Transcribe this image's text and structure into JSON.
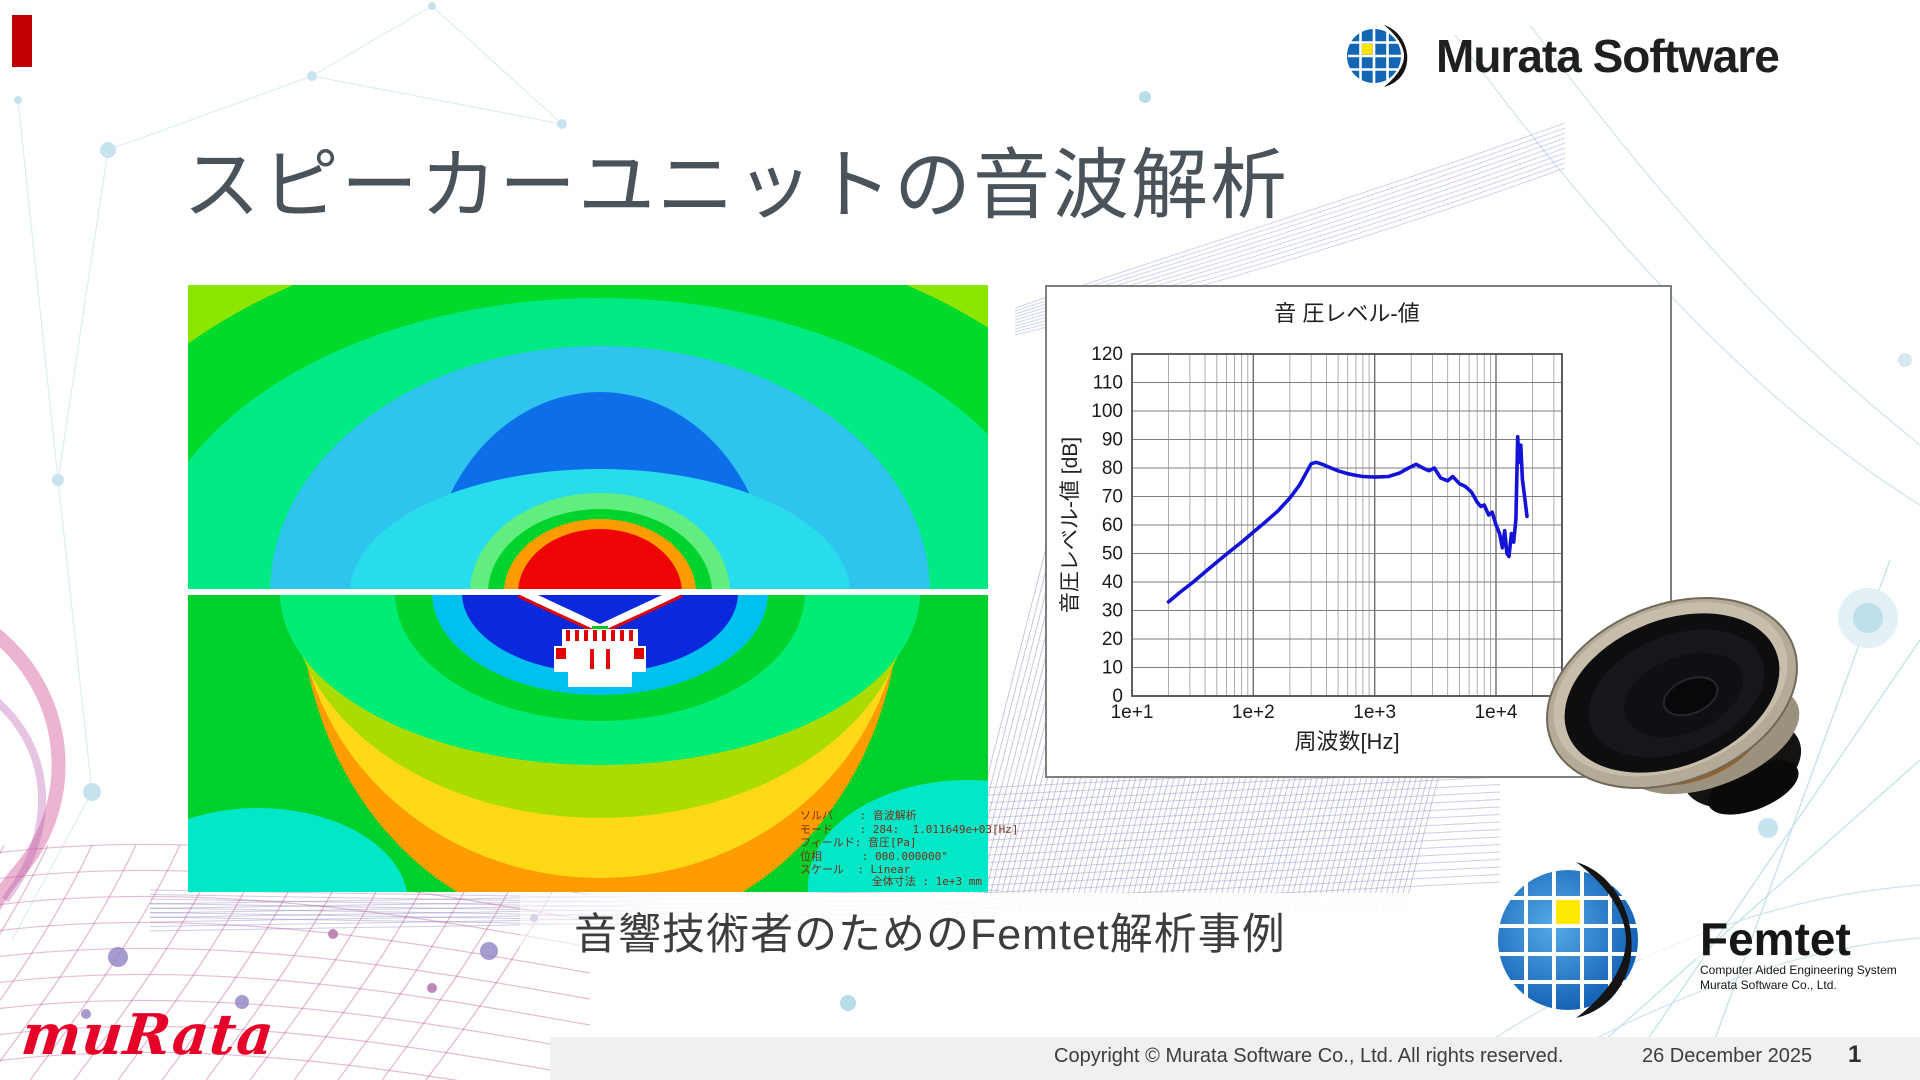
{
  "header": {
    "brand": "Murata Software"
  },
  "title": "スピーカーユニットの音波解析",
  "subtitle": "音響技術者のためのFemtet解析事例",
  "sim_image": {
    "legend_lines": [
      "ソルバ    : 音波解析",
      "モード    : 284:  1.011649e+03[Hz]",
      "フィールド: 音圧[Pa]",
      "位相      : 000.000000°",
      "スケール  : Linear"
    ],
    "size_note": "全体寸法 : 1e+3 mm"
  },
  "chart_data": {
    "type": "line",
    "title": "音 圧レベル-値",
    "xlabel": "周波数[Hz]",
    "ylabel": "音圧レベル-値 [dB]",
    "x_scale": "log",
    "xlim": [
      10,
      35000
    ],
    "ylim": [
      0,
      120
    ],
    "x_ticks": [
      "1e+1",
      "1e+2",
      "1e+3",
      "1e+4"
    ],
    "x_tick_values": [
      10,
      100,
      1000,
      10000
    ],
    "y_ticks": [
      0,
      10,
      20,
      30,
      40,
      50,
      60,
      70,
      80,
      90,
      100,
      110,
      120
    ],
    "grid": true,
    "legend_position": "none",
    "series": [
      {
        "name": "音圧レベル値",
        "color": "#1313d8",
        "x": [
          20,
          25,
          32,
          40,
          50,
          63,
          80,
          100,
          125,
          160,
          200,
          240,
          270,
          300,
          330,
          370,
          420,
          500,
          600,
          700,
          800,
          1000,
          1300,
          1600,
          1900,
          2200,
          2500,
          2800,
          3100,
          3500,
          4000,
          4400,
          5000,
          5600,
          6300,
          7000,
          7500,
          8000,
          8700,
          9300,
          10000,
          10700,
          11300,
          11800,
          12300,
          12800,
          13400,
          14000,
          14600,
          15100,
          15500,
          16000,
          16500,
          17200,
          18000
        ],
        "y": [
          33,
          36.5,
          40,
          43.5,
          47,
          50.5,
          54,
          57.5,
          61,
          65,
          69.5,
          74,
          78,
          81.5,
          82,
          81.3,
          80.3,
          79,
          78,
          77.4,
          77,
          76.8,
          77,
          78.2,
          80,
          81.3,
          80,
          79,
          80,
          76.5,
          75.5,
          77,
          74.5,
          73.5,
          71.5,
          68,
          66.5,
          67,
          63.5,
          64.5,
          60,
          57,
          52,
          58,
          50,
          49,
          57,
          54,
          62,
          91,
          82,
          88,
          76,
          70,
          63
        ]
      }
    ]
  },
  "femtet": {
    "name": "Femtet",
    "caption_line1": "Computer Aided Engineering System",
    "caption_line2": "Murata Software Co., Ltd."
  },
  "footer": {
    "logo_text": "muRata",
    "copyright": "Copyright © Murata Software Co., Ltd. All rights reserved.",
    "date": "26 December 2025",
    "page": "1"
  },
  "icons": {
    "murata_globe": "murata-globe-icon",
    "femtet_globe": "femtet-globe-icon",
    "speaker_photo": "speaker-driver-image"
  },
  "colors": {
    "curve_blue": "#1313d8",
    "logo_blue": "#1266b4",
    "logo_yellow": "#ffe400",
    "murata_red": "#e60028",
    "title_gray": "#4a535a"
  }
}
